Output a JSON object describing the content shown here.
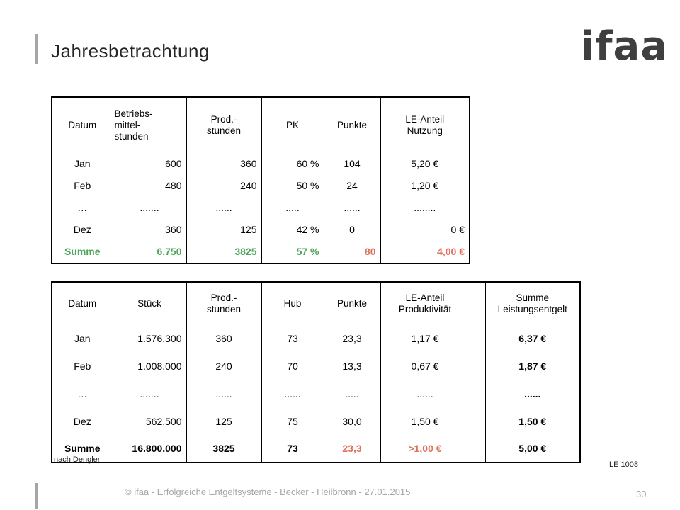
{
  "header": {
    "title": "Jahresbetrachtung",
    "logo_text": "ifaa"
  },
  "table1": {
    "headers": [
      "Datum",
      "Betriebs-\nmittel-\nstunden",
      "Prod.-\nstunden",
      "PK",
      "Punkte",
      "LE-Anteil\nNutzung"
    ],
    "rows": [
      [
        "Jan",
        "600",
        "360",
        "60 %",
        "104",
        "5,20 €"
      ],
      [
        "Feb",
        "480",
        "240",
        "50 %",
        "24",
        "1,20 €"
      ],
      [
        "…",
        ".......",
        "......",
        ".....",
        "......",
        "........"
      ],
      [
        "Dez",
        "360",
        "125",
        "42 %",
        "0",
        "0 €"
      ]
    ],
    "sum": [
      "Summe",
      "6.750",
      "3825",
      "57 %",
      "80",
      "4,00 €"
    ]
  },
  "table2": {
    "headers": [
      "Datum",
      "Stück",
      "Prod.-\nstunden",
      "Hub",
      "Punkte",
      "LE-Anteil\nProduktivität",
      "",
      "Summe\nLeistungsentgelt"
    ],
    "rows": [
      [
        "Jan",
        "1.576.300",
        "360",
        "73",
        "23,3",
        "1,17 €",
        "",
        "6,37 €"
      ],
      [
        "Feb",
        "1.008.000",
        "240",
        "70",
        "13,3",
        "0,67 €",
        "",
        "1,87 €"
      ],
      [
        "…",
        ".......",
        "......",
        "......",
        ".....",
        "......",
        "",
        "......"
      ],
      [
        "Dez",
        "562.500",
        "125",
        "75",
        "30,0",
        "1,50 €",
        "",
        "1,50 €"
      ]
    ],
    "sum": [
      "Summe",
      "16.800.000",
      "3825",
      "73",
      "23,3",
      ">1,00 €",
      "",
      "5,00 €"
    ]
  },
  "notes": {
    "source": "nach Dengler",
    "ref": "LE 1008"
  },
  "footer": {
    "text": "© ifaa - Erfolgreiche Entgeltsysteme - Becker - Heilbronn - 27.01.2015",
    "page": "30"
  },
  "colors": {
    "green": "#4ea65a",
    "red": "#e0705a",
    "gray": "#a6a6a6"
  }
}
